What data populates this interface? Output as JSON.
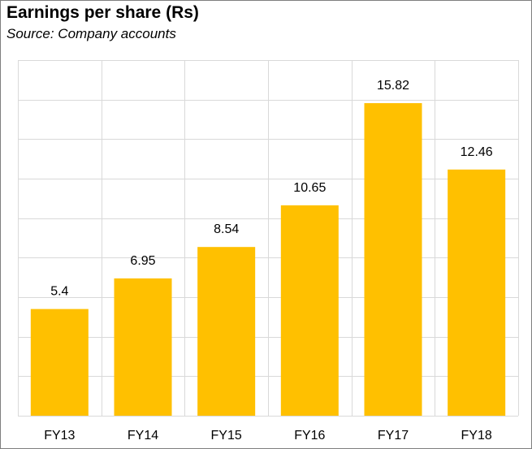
{
  "chart_data": {
    "type": "bar",
    "title": "Earnings per share (Rs)",
    "subtitle": "Source: Company accounts",
    "categories": [
      "FY13",
      "FY14",
      "FY15",
      "FY16",
      "FY17",
      "FY18"
    ],
    "values": [
      5.4,
      6.95,
      8.54,
      10.65,
      15.82,
      12.46
    ],
    "data_labels": [
      "5.4",
      "6.95",
      "8.54",
      "10.65",
      "15.82",
      "12.46"
    ],
    "ylim": [
      0,
      18
    ],
    "grid": true,
    "bar_color": "#FFC000",
    "grid_color": "#D9D9D9"
  }
}
